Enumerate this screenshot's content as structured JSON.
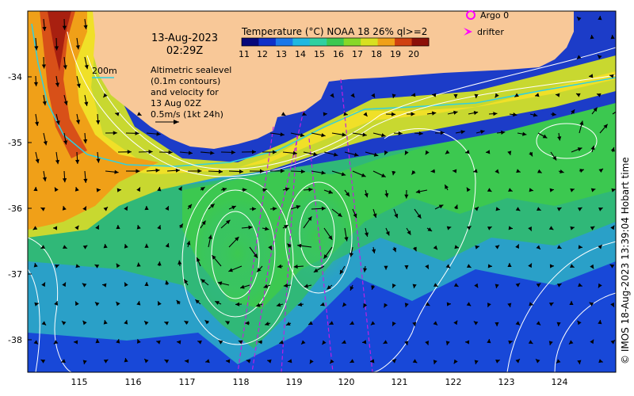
{
  "title": {
    "date": "13-Aug-2023",
    "time": "02:29Z"
  },
  "colorbar": {
    "title": "Temperature (°C) NOAA 18 26% ql>=2",
    "ticks": [
      "11",
      "12",
      "13",
      "14",
      "15",
      "16",
      "17",
      "18",
      "19",
      "20"
    ],
    "colors": [
      "#08087a",
      "#1030c8",
      "#1c78e8",
      "#20b8e0",
      "#30d0a0",
      "#3cc850",
      "#88d828",
      "#d8e020",
      "#f0a018",
      "#d04010",
      "#8c1008"
    ]
  },
  "legend": {
    "argo": "Argo 0",
    "drifter": "drifter",
    "contour_label": "200m",
    "accent": "#ff00ff",
    "bathy_color": "#30d0e0"
  },
  "annotation": {
    "line1": "Altimetric sealevel",
    "line2": "(0.1m contours)",
    "line3": "and velocity for",
    "line4": "13 Aug 02Z",
    "line5": "0.5m/s (1kt 24h)"
  },
  "axes": {
    "lat_ticks": [
      "-34",
      "-35",
      "-36",
      "-37",
      "-38"
    ],
    "lon_ticks": [
      "115",
      "116",
      "117",
      "118",
      "119",
      "120",
      "121",
      "122",
      "123",
      "124"
    ]
  },
  "credit": "© IMOS 18-Aug-2023 13:39:04 Hobart time"
}
